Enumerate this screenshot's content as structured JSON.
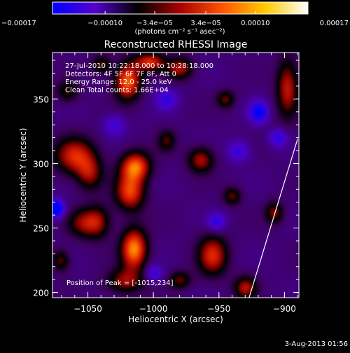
{
  "chart_data": {
    "type": "heatmap",
    "title": "Reconstructed RHESSI Image",
    "xlabel": "Heliocentric X (arcsec)",
    "ylabel": "Heliocentric Y (arcsec)",
    "xlim": [
      -1077,
      -889
    ],
    "ylim": [
      196,
      386
    ],
    "x_ticks": [
      -1050,
      -1000,
      -950,
      -900
    ],
    "x_tick_labels": [
      "−1050",
      "−1000",
      "−950",
      "−900"
    ],
    "y_ticks": [
      200,
      250,
      300,
      350
    ],
    "y_tick_labels": [
      "200",
      "250",
      "300",
      "350"
    ],
    "colorbar": {
      "range": [
        -0.00017,
        0.00017
      ],
      "tick_values": [
        -0.00017,
        -0.0001,
        -3.4e-05,
        3.4e-05,
        0.0001,
        0.00017
      ],
      "tick_labels": [
        "−0.00017",
        "−0.00010",
        "−3.4e−05",
        "3.4e−05",
        "0.00010",
        "0.00017"
      ],
      "unit_label": "(photons cm⁻² s⁻¹ asec⁻²)",
      "colors": [
        "#0000ff",
        "#5500cc",
        "#000000",
        "#aa0000",
        "#ff5500",
        "#ffcc00",
        "#ffffff"
      ]
    },
    "annotations": [
      "27-Jul-2010 10:22:18.000 to 10:28:18.000",
      "Detectors: 4F 5F 6F 7F 8F, Att 0",
      "Energy Range: 12.0 - 25.0 keV",
      "Clean    Total counts: 1.66E+04"
    ],
    "peak_label": "Position of Peak = [-1015,234]",
    "peak": {
      "x": -1015,
      "y": 234
    },
    "limb_line": [
      [
        -927,
        196
      ],
      [
        -890,
        319
      ]
    ],
    "sources": [
      {
        "x": -1060,
        "y": 306,
        "sx": 11,
        "sy": 10,
        "a": 0.72
      },
      {
        "x": -1049,
        "y": 292,
        "sx": 7,
        "sy": 9,
        "a": 0.5
      },
      {
        "x": -1055,
        "y": 254,
        "sx": 8,
        "sy": 8,
        "a": 0.45
      },
      {
        "x": -1043,
        "y": 255,
        "sx": 7,
        "sy": 9,
        "a": 0.55
      },
      {
        "x": -1066,
        "y": 356,
        "sx": 6,
        "sy": 6,
        "a": 0.4
      },
      {
        "x": -1015,
        "y": 234,
        "sx": 7,
        "sy": 11,
        "a": 1.0
      },
      {
        "x": -1018,
        "y": 278,
        "sx": 8,
        "sy": 10,
        "a": 0.8
      },
      {
        "x": -1014,
        "y": 298,
        "sx": 8,
        "sy": 8,
        "a": 0.9
      },
      {
        "x": -1020,
        "y": 364,
        "sx": 7,
        "sy": 10,
        "a": 0.92
      },
      {
        "x": -1003,
        "y": 379,
        "sx": 8,
        "sy": 5,
        "a": 0.72
      },
      {
        "x": -1022,
        "y": 209,
        "sx": 10,
        "sy": 7,
        "a": 0.55
      },
      {
        "x": -980,
        "y": 374,
        "sx": 7,
        "sy": 6,
        "a": 0.6
      },
      {
        "x": -964,
        "y": 303,
        "sx": 7,
        "sy": 7,
        "a": 0.6
      },
      {
        "x": -940,
        "y": 275,
        "sx": 5,
        "sy": 5,
        "a": 0.45
      },
      {
        "x": -955,
        "y": 229,
        "sx": 8,
        "sy": 11,
        "a": 0.72
      },
      {
        "x": -930,
        "y": 204,
        "sx": 6,
        "sy": 6,
        "a": 0.6
      },
      {
        "x": -945,
        "y": 350,
        "sx": 5,
        "sy": 5,
        "a": 0.45
      },
      {
        "x": -898,
        "y": 359,
        "sx": 6,
        "sy": 16,
        "a": 0.65
      },
      {
        "x": -908,
        "y": 262,
        "sx": 5,
        "sy": 6,
        "a": 0.5
      },
      {
        "x": -980,
        "y": 210,
        "sx": 6,
        "sy": 5,
        "a": 0.45
      },
      {
        "x": -1071,
        "y": 225,
        "sx": 5,
        "sy": 6,
        "a": 0.45
      },
      {
        "x": -1040,
        "y": 377,
        "sx": 5,
        "sy": 5,
        "a": 0.45
      },
      {
        "x": -990,
        "y": 318,
        "sx": 5,
        "sy": 6,
        "a": 0.4
      },
      {
        "x": -1075,
        "y": 265,
        "sx": 5,
        "sy": 5,
        "a": -0.85
      },
      {
        "x": -920,
        "y": 340,
        "sx": 5,
        "sy": 6,
        "a": -0.65
      },
      {
        "x": -905,
        "y": 320,
        "sx": 5,
        "sy": 5,
        "a": -0.45
      },
      {
        "x": -952,
        "y": 255,
        "sx": 5,
        "sy": 5,
        "a": -0.45
      },
      {
        "x": -935,
        "y": 310,
        "sx": 6,
        "sy": 6,
        "a": -0.4
      },
      {
        "x": -1000,
        "y": 215,
        "sx": 5,
        "sy": 5,
        "a": -0.4
      },
      {
        "x": -1030,
        "y": 330,
        "sx": 6,
        "sy": 6,
        "a": -0.35
      },
      {
        "x": -990,
        "y": 350,
        "sx": 6,
        "sy": 6,
        "a": -0.4
      }
    ]
  },
  "footer": {
    "date_stamp": "3-Aug-2013 01:56"
  }
}
